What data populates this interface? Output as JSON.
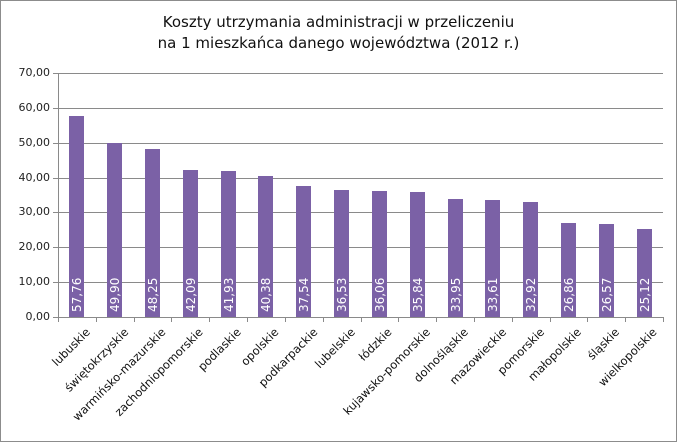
{
  "chart_data": {
    "type": "bar",
    "title": "Koszty utrzymania administracji w przeliczeniu na 1 mieszkańca danego województwa (2012 r.)",
    "title_lines": [
      "Koszty utrzymania administracji w przeliczeniu",
      "na 1 mieszkańca danego województwa (2012 r.)"
    ],
    "xlabel": "",
    "ylabel": "",
    "ylim": [
      0,
      70
    ],
    "yticks": [
      "0,00",
      "10,00",
      "20,00",
      "30,00",
      "40,00",
      "50,00",
      "60,00",
      "70,00"
    ],
    "grid": true,
    "legend": "none",
    "bar_color": "#7b61a6",
    "categories": [
      "lubuskie",
      "świętokrzyskie",
      "warmińsko-mazurskie",
      "zachodniopomorskie",
      "podlaskie",
      "opolskie",
      "podkarpackie",
      "lubelskie",
      "łódzkie",
      "kujawsko-pomorskie",
      "dolnośląskie",
      "mazowieckie",
      "pomorskie",
      "małopolskie",
      "śląskie",
      "wielkopolskie"
    ],
    "values": [
      57.76,
      49.9,
      48.25,
      42.09,
      41.93,
      40.38,
      37.54,
      36.53,
      36.06,
      35.84,
      33.95,
      33.61,
      32.92,
      26.86,
      26.57,
      25.12
    ],
    "value_labels": [
      "57,76",
      "49,90",
      "48,25",
      "42,09",
      "41,93",
      "40,38",
      "37,54",
      "36,53",
      "36,06",
      "35,84",
      "33,95",
      "33,61",
      "32,92",
      "26,86",
      "26,57",
      "25,12"
    ]
  }
}
